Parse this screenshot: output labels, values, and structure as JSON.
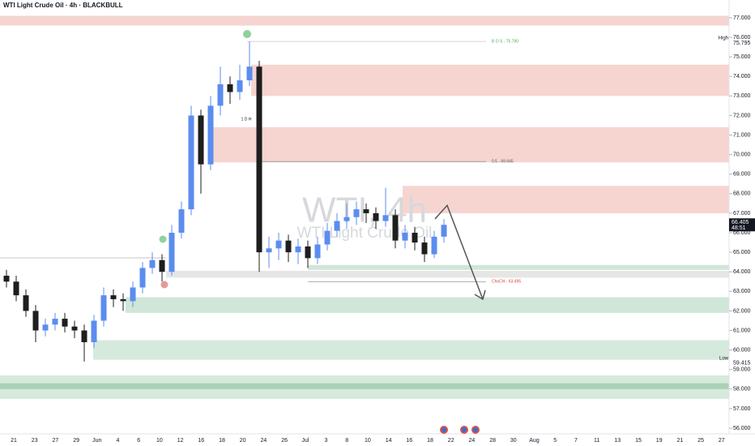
{
  "chart_data": {
    "type": "candlestick",
    "title": "WTI Light Crude Oil · 4h · BLACKBULL",
    "watermark": "WTI, 4h",
    "watermark_subtitle": "WTI Light Crude Oil",
    "open": [
      63.8,
      63.5,
      62.8,
      62.0,
      61.0,
      61.3,
      61.6,
      61.2,
      61.0,
      60.4,
      61.5,
      62.8,
      62.6,
      62.5,
      63.2,
      64.2,
      64.6,
      64.0,
      66.0,
      67.2,
      72.0,
      69.5,
      72.5,
      73.6,
      73.2,
      73.8,
      74.5,
      65.0,
      65.2,
      65.6,
      65.0,
      65.3,
      64.7,
      65.4,
      66.1,
      66.6,
      66.8,
      67.2,
      67.0,
      66.6,
      66.9,
      65.6,
      66.0,
      65.5,
      64.9,
      65.8
    ],
    "high": [
      64.1,
      63.8,
      63.1,
      62.3,
      61.6,
      61.9,
      61.9,
      61.5,
      61.3,
      61.8,
      63.2,
      63.1,
      62.9,
      63.5,
      64.5,
      65.0,
      64.9,
      66.4,
      67.6,
      72.5,
      72.3,
      73.0,
      74.5,
      74.0,
      74.6,
      75.795,
      74.8,
      65.8,
      66.0,
      65.9,
      65.7,
      65.6,
      65.8,
      66.5,
      67.0,
      67.5,
      67.6,
      67.5,
      67.3,
      68.3,
      67.2,
      66.4,
      66.3,
      65.8,
      66.1,
      66.7
    ],
    "low": [
      63.2,
      62.5,
      61.7,
      60.4,
      60.7,
      61.0,
      60.9,
      60.6,
      59.415,
      60.1,
      61.2,
      62.2,
      62.0,
      62.2,
      62.9,
      63.9,
      63.5,
      63.8,
      65.7,
      66.9,
      68.0,
      69.2,
      72.0,
      72.6,
      72.8,
      73.5,
      64.0,
      64.2,
      64.6,
      64.5,
      64.4,
      64.2,
      64.4,
      65.1,
      65.8,
      66.2,
      66.4,
      66.5,
      66.2,
      66.3,
      65.2,
      65.2,
      65.1,
      64.5,
      64.7,
      65.5
    ],
    "close": [
      63.5,
      62.8,
      62.0,
      61.0,
      61.3,
      61.6,
      61.2,
      61.0,
      60.4,
      61.5,
      62.8,
      62.6,
      62.5,
      63.2,
      64.2,
      64.6,
      64.0,
      66.0,
      67.2,
      72.0,
      69.5,
      72.5,
      73.6,
      73.2,
      73.8,
      74.5,
      65.0,
      65.2,
      65.6,
      65.0,
      65.3,
      64.7,
      65.4,
      66.1,
      66.6,
      66.8,
      67.2,
      67.0,
      66.6,
      66.9,
      65.6,
      66.0,
      65.5,
      64.9,
      65.8,
      66.405
    ],
    "up_color": "#5b8def",
    "down_color": "#1e1e1e",
    "x_labels": [
      "21",
      "23",
      "27",
      "29",
      "Jun",
      "4",
      "6",
      "10",
      "12",
      "16",
      "18",
      "20",
      "24",
      "26",
      "Jul",
      "3",
      "8",
      "10",
      "14",
      "16",
      "18",
      "22",
      "24",
      "28",
      "30",
      "Aug",
      "5",
      "7",
      "11",
      "13",
      "15",
      "19",
      "21",
      "25",
      "27"
    ],
    "ylim": [
      55.71,
      77.91
    ],
    "yticks": [
      {
        "value": 56,
        "label": "56.000"
      },
      {
        "value": 57,
        "label": "57.000"
      },
      {
        "value": 58,
        "label": "58.000"
      },
      {
        "value": 59,
        "label": "59.000"
      },
      {
        "value": 60,
        "label": "60.000"
      },
      {
        "value": 61,
        "label": "61.000"
      },
      {
        "value": 62,
        "label": "62.000"
      },
      {
        "value": 63,
        "label": "63.000"
      },
      {
        "value": 64,
        "label": "64.000"
      },
      {
        "value": 65,
        "label": "65.000"
      },
      {
        "value": 66,
        "label": "66.000"
      },
      {
        "value": 67,
        "label": "67.000"
      },
      {
        "value": 68,
        "label": "68.000"
      },
      {
        "value": 69,
        "label": "69.000"
      },
      {
        "value": 70,
        "label": "70.000"
      },
      {
        "value": 71,
        "label": "71.000"
      },
      {
        "value": 72,
        "label": "72.000"
      },
      {
        "value": 73,
        "label": "73.000"
      },
      {
        "value": 74,
        "label": "74.000"
      },
      {
        "value": 75,
        "label": "75.000"
      },
      {
        "value": 76,
        "label": "76.000"
      },
      {
        "value": 77,
        "label": "77.000"
      }
    ],
    "zones": [
      {
        "low": 76.6,
        "high": 77.1,
        "color": "#f6d5d1"
      },
      {
        "low": 73.0,
        "high": 74.6,
        "color": "#f6d5d1"
      },
      {
        "low": 69.6,
        "high": 71.4,
        "color": "#f6d5d1"
      },
      {
        "low": 67.0,
        "high": 68.4,
        "color": "#f6d5d1"
      },
      {
        "low": 64.1,
        "high": 64.35,
        "color": "#cfe6d8"
      },
      {
        "low": 63.7,
        "high": 64.05,
        "color": "#e6e6e6"
      },
      {
        "low": 61.9,
        "high": 62.7,
        "color": "#cfe6d8"
      },
      {
        "low": 59.5,
        "high": 60.5,
        "color": "#d5eadc"
      },
      {
        "low": 57.5,
        "high": 58.7,
        "color": "#d5eadc"
      },
      {
        "low": 58.0,
        "high": 58.3,
        "color": "#a9d2b8"
      }
    ],
    "levels": [
      {
        "label": "B O S - 75.790",
        "value": 75.79,
        "color": "#4caf50"
      },
      {
        "label": "0.5 - 69.645",
        "value": 69.645,
        "color": "#555555"
      },
      {
        "label": "ChoCH - 63.495",
        "value": 63.495,
        "color": "#e53935"
      }
    ],
    "note": "1 D H",
    "projection": {
      "from": 67.4,
      "to": 62.6
    },
    "high_marker": {
      "label": "High",
      "value": 75.795
    },
    "low_marker": {
      "label": "Low",
      "value": 59.415
    },
    "last_price": 66.405,
    "countdown": "48:51"
  }
}
